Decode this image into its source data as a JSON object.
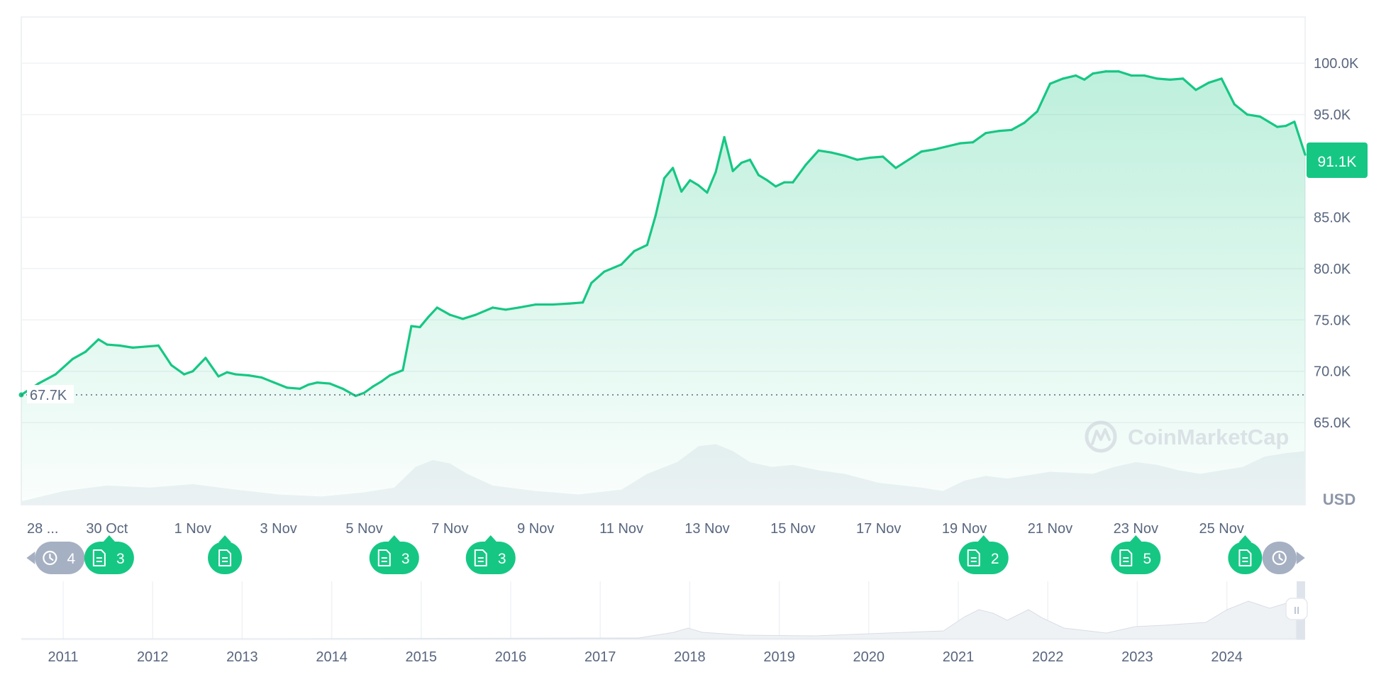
{
  "chart_data": {
    "type": "area",
    "currency_label": "USD",
    "watermark": "CoinMarketCap",
    "current_price_label": "91.1K",
    "reference_price_label": "67.7K",
    "reference_value": 67700,
    "ylim": [
      57000,
      104500
    ],
    "yticks": [
      {
        "value": 100000,
        "label": "100.0K"
      },
      {
        "value": 95000,
        "label": "95.0K"
      },
      {
        "value": 85000,
        "label": "85.0K"
      },
      {
        "value": 80000,
        "label": "80.0K"
      },
      {
        "value": 75000,
        "label": "75.0K"
      },
      {
        "value": 70000,
        "label": "70.0K"
      },
      {
        "value": 65000,
        "label": "65.0K"
      }
    ],
    "x_range": [
      0,
      29.95
    ],
    "xticks": [
      {
        "value": 2.0,
        "label": "30 Oct"
      },
      {
        "value": 4.0,
        "label": "1 Nov"
      },
      {
        "value": 6.0,
        "label": "3 Nov"
      },
      {
        "value": 8.0,
        "label": "5 Nov"
      },
      {
        "value": 10.0,
        "label": "7 Nov"
      },
      {
        "value": 12.0,
        "label": "9 Nov"
      },
      {
        "value": 14.0,
        "label": "11 Nov"
      },
      {
        "value": 16.0,
        "label": "13 Nov"
      },
      {
        "value": 18.0,
        "label": "15 Nov"
      },
      {
        "value": 20.0,
        "label": "17 Nov"
      },
      {
        "value": 22.0,
        "label": "19 Nov"
      },
      {
        "value": 24.0,
        "label": "21 Nov"
      },
      {
        "value": 26.0,
        "label": "23 Nov"
      },
      {
        "value": 28.0,
        "label": "25 Nov"
      }
    ],
    "first_xtick_label": "28 ...",
    "series": [
      {
        "line_color": "#16c784",
        "x": [
          0,
          0.4,
          0.8,
          1.2,
          1.5,
          1.8,
          2.0,
          2.3,
          2.6,
          2.9,
          3.2,
          3.5,
          3.8,
          4.0,
          4.3,
          4.6,
          4.8,
          5.0,
          5.3,
          5.6,
          5.9,
          6.2,
          6.5,
          6.7,
          6.9,
          7.2,
          7.5,
          7.8,
          8.0,
          8.2,
          8.4,
          8.6,
          8.9,
          9.1,
          9.3,
          9.5,
          9.7,
          10.0,
          10.3,
          10.6,
          11.0,
          11.3,
          11.6,
          12.0,
          12.4,
          12.8,
          13.1,
          13.3,
          13.6,
          14.0,
          14.3,
          14.6,
          14.8,
          15.0,
          15.2,
          15.4,
          15.6,
          15.8,
          16.0,
          16.2,
          16.4,
          16.6,
          16.8,
          17.0,
          17.2,
          17.4,
          17.6,
          17.8,
          18.0,
          18.3,
          18.6,
          18.9,
          19.2,
          19.5,
          19.8,
          20.1,
          20.4,
          20.7,
          21.0,
          21.3,
          21.6,
          21.9,
          22.2,
          22.5,
          22.8,
          23.1,
          23.4,
          23.7,
          24.0,
          24.3,
          24.6,
          24.8,
          25.0,
          25.3,
          25.6,
          25.9,
          26.2,
          26.5,
          26.8,
          27.1,
          27.4,
          27.7,
          28.0,
          28.3,
          28.6,
          28.9,
          29.1,
          29.3,
          29.5,
          29.7,
          29.95
        ],
        "y": [
          67700,
          68800,
          69700,
          71200,
          71900,
          73100,
          72600,
          72500,
          72300,
          72400,
          72500,
          70600,
          69700,
          70000,
          71300,
          69500,
          69900,
          69700,
          69600,
          69400,
          68900,
          68400,
          68300,
          68700,
          68900,
          68800,
          68300,
          67600,
          67900,
          68500,
          69000,
          69600,
          70100,
          74400,
          74300,
          75300,
          76200,
          75500,
          75100,
          75500,
          76200,
          76000,
          76200,
          76500,
          76500,
          76600,
          76700,
          78600,
          79700,
          80400,
          81700,
          82300,
          85200,
          88800,
          89800,
          87500,
          88600,
          88100,
          87400,
          89400,
          92800,
          89500,
          90300,
          90600,
          89100,
          88600,
          88000,
          88400,
          88400,
          90100,
          91500,
          91300,
          91000,
          90600,
          90800,
          90900,
          89800,
          90600,
          91400,
          91600,
          91900,
          92200,
          92300,
          93200,
          93400,
          93500,
          94200,
          95300,
          98000,
          98500,
          98800,
          98400,
          99000,
          99200,
          99200,
          98800,
          98800,
          98500,
          98400,
          98500,
          97400,
          98100,
          98500,
          96000,
          95000,
          94800,
          94300,
          93800,
          93900,
          94300,
          91100
        ]
      }
    ],
    "volume_area": {
      "color": "#eff2f5",
      "x": [
        0,
        1,
        2,
        3,
        4,
        5,
        6,
        7,
        8,
        8.7,
        9.2,
        9.6,
        10.0,
        10.4,
        11,
        12,
        13,
        14,
        14.6,
        15.3,
        15.8,
        16.2,
        16.6,
        17.0,
        17.5,
        18.0,
        18.6,
        19.2,
        20,
        21,
        21.5,
        22,
        22.5,
        23,
        24,
        25,
        25.5,
        26,
        26.5,
        27,
        27.5,
        28,
        28.5,
        29,
        29.5,
        29.95
      ],
      "y": [
        0.05,
        0.2,
        0.28,
        0.25,
        0.3,
        0.22,
        0.15,
        0.12,
        0.18,
        0.25,
        0.55,
        0.65,
        0.6,
        0.45,
        0.28,
        0.2,
        0.15,
        0.22,
        0.45,
        0.62,
        0.85,
        0.88,
        0.78,
        0.62,
        0.55,
        0.58,
        0.5,
        0.45,
        0.32,
        0.25,
        0.2,
        0.35,
        0.42,
        0.38,
        0.48,
        0.45,
        0.55,
        0.62,
        0.58,
        0.5,
        0.45,
        0.5,
        0.55,
        0.7,
        0.75,
        0.78
      ]
    },
    "events": [
      {
        "type": "history",
        "label": "4",
        "x": 0.9
      },
      {
        "type": "news",
        "label": "3",
        "x": 2.05
      },
      {
        "type": "news",
        "label": "",
        "x": 4.75
      },
      {
        "type": "news",
        "label": "3",
        "x": 8.7
      },
      {
        "type": "news",
        "label": "3",
        "x": 10.95
      },
      {
        "type": "news",
        "label": "2",
        "x": 22.45
      },
      {
        "type": "news",
        "label": "5",
        "x": 26.0
      },
      {
        "type": "news",
        "label": "",
        "x": 28.55
      },
      {
        "type": "history",
        "label": "",
        "x": 29.35
      }
    ],
    "navigator": {
      "years": [
        "2011",
        "2012",
        "2013",
        "2014",
        "2015",
        "2016",
        "2017",
        "2018",
        "2019",
        "2020",
        "2021",
        "2022",
        "2023",
        "2024"
      ],
      "handle_label": "II"
    },
    "colors": {
      "up": "#16c784",
      "down": "#ea3943",
      "grid": "#eff2f5",
      "tick_text": "#58667e",
      "history_marker": "#a6b0c3"
    }
  }
}
